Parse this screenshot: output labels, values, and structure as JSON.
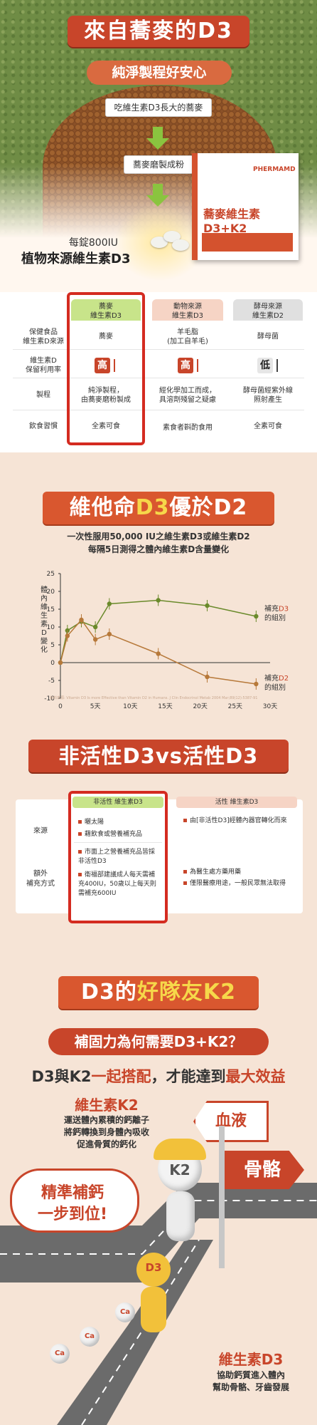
{
  "hero": {
    "title": "來自蕎麥的D3",
    "subtitle": "純淨製程好安心",
    "step1": "吃維生素D3長大的蕎麥",
    "step2": "蕎麥磨製成粉",
    "dose_line1": "每錠800IU",
    "dose_line2": "植物來源維生素D3",
    "product_name": "蕎麥維生素D3+K2",
    "product_brand": "PHERMAMD"
  },
  "compare_table": {
    "row_labels": [
      "保健食品\n維生素D來源",
      "維生素D\n保留利用率",
      "製程",
      "飲食習慣"
    ],
    "columns": [
      {
        "header": "蕎麥\n維生素D3",
        "source": "蕎麥",
        "retention": "高",
        "process": "純淨製程，\n由蕎麥磨粉製成",
        "diet": "全素可食",
        "color": "#c8452a",
        "arrow": "up"
      },
      {
        "header": "動物來源\n維生素D3",
        "source": "羊毛脂\n(加工自羊毛)",
        "retention": "高",
        "process": "經化學加工而成，\n具溶劑殘留之疑慮",
        "diet": "素食者斟酌食用",
        "color": "#c8452a",
        "arrow": "up"
      },
      {
        "header": "酵母來源\n維生素D2",
        "source": "酵母菌",
        "retention": "低",
        "process": "酵母菌經紫外線\n照射產生",
        "diet": "全素可食",
        "color": "#444444",
        "arrow": "down"
      }
    ]
  },
  "chart_section": {
    "title_pre": "維他命",
    "title_hl": "D3",
    "title_post": "優於D2",
    "caption1": "一次性服用50,000 IU之維生素D3或維生素D2",
    "caption2": "每隔5日測得之體內維生素D含量變化",
    "source_note": "資料來源: Vitamin D3 Is more Effective than Vitamin D2 in Humans. J Clin Endocrinol Metab 2004 Mar;89(12):5387-91"
  },
  "chart_data": {
    "type": "line",
    "ylabel": "體內維生素D變化",
    "ylim": [
      -10,
      25
    ],
    "yticks": [
      -10,
      -5,
      0,
      5,
      10,
      15,
      20,
      25
    ],
    "xticks": [
      "0",
      "5天",
      "10天",
      "15天",
      "20天",
      "25天",
      "30天"
    ],
    "xlim": [
      0,
      30
    ],
    "series": [
      {
        "name": "補充D3的組別",
        "color": "#6a8a2b",
        "x": [
          0,
          1,
          3,
          5,
          7,
          14,
          21,
          28
        ],
        "y": [
          0,
          9,
          11.5,
          10,
          16.5,
          17.5,
          16,
          13
        ]
      },
      {
        "name": "補充D2的組別",
        "color": "#b7793a",
        "x": [
          0,
          1,
          3,
          5,
          7,
          14,
          21,
          28
        ],
        "y": [
          0,
          7.5,
          12,
          6.5,
          8,
          2.5,
          -4,
          -6
        ]
      }
    ],
    "legend_d3_pre": "補充",
    "legend_d3_hl": "D3",
    "legend_d3_post": "的組別",
    "legend_d2_pre": "補充",
    "legend_d2_hl": "D2",
    "legend_d2_post": "的組別"
  },
  "active_section": {
    "title": "非活性D3vs活性D3",
    "row_labels": [
      "來源",
      "額外\n補充方式"
    ],
    "inactive_header": "非活性 維生素D3",
    "inactive_source": [
      "曬太陽",
      "藉飲食或營養補充品"
    ],
    "inactive_supplement": [
      "市面上之營養補充品皆採非活性D3",
      "衛福部建議成人每天需補充400IU，50歲以上每天則需補充600IU"
    ],
    "active_header": "活性 維生素D3",
    "active_source": [
      "由[非活性D3]經體內器官轉化而來"
    ],
    "active_supplement": [
      "為醫生處方藥用藥",
      "僅限醫療用途，一般民眾無法取得"
    ]
  },
  "k2_section": {
    "title_pre": "D3的",
    "title_hl": "好隊友K2",
    "question": "補固力為何需要D3+K2？",
    "tagline_pre": "D3與K2",
    "tagline_hl1": "一起搭配",
    "tagline_mid": "，才能達到",
    "tagline_hl2": "最大效益",
    "k2_title": "維生素K2",
    "k2_desc": [
      "運送體內累積的鈣離子",
      "將鈣轉換到身體內吸收",
      "促進骨質的鈣化"
    ],
    "sign_blood": "血液",
    "sign_bone": "骨骼",
    "bubble_line1": "精準補鈣",
    "bubble_line2": "一步到位!",
    "k2_label": "K2",
    "d3_label": "D3",
    "ca_label": "Ca",
    "d3_title": "維生素D3",
    "d3_desc": [
      "協助鈣質進入體內",
      "幫助骨骼、牙齒發展"
    ]
  }
}
